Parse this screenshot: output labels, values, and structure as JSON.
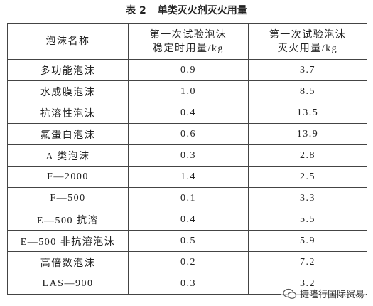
{
  "title": {
    "label": "表 2",
    "text": "单类灭火剂灭火用量"
  },
  "table": {
    "header": [
      "泡沫名称",
      [
        "第一次试验泡沫",
        "稳定时用量/kg"
      ],
      [
        "第一次试验泡沫",
        "灭火用量/kg"
      ]
    ],
    "rows": [
      [
        "多功能泡沫",
        "0.9",
        "3.7"
      ],
      [
        "水成膜泡沫",
        "1.0",
        "8.5"
      ],
      [
        "抗溶性泡沫",
        "0.4",
        "13.5"
      ],
      [
        "氟蛋白泡沫",
        "0.6",
        "13.9"
      ],
      [
        "A 类泡沫",
        "0.3",
        "2.8"
      ],
      [
        "F—2000",
        "1.4",
        "2.5"
      ],
      [
        "F—500",
        "0.1",
        "3.3"
      ],
      [
        "E—500 抗溶",
        "0.4",
        "5.5"
      ],
      [
        "E—500 非抗溶泡沫",
        "0.5",
        "5.9"
      ],
      [
        "高倍数泡沫",
        "0.2",
        "7.2"
      ],
      [
        "LAS—900",
        "0.3",
        "3.2"
      ]
    ]
  },
  "watermark": "捷隆行国际贸易"
}
